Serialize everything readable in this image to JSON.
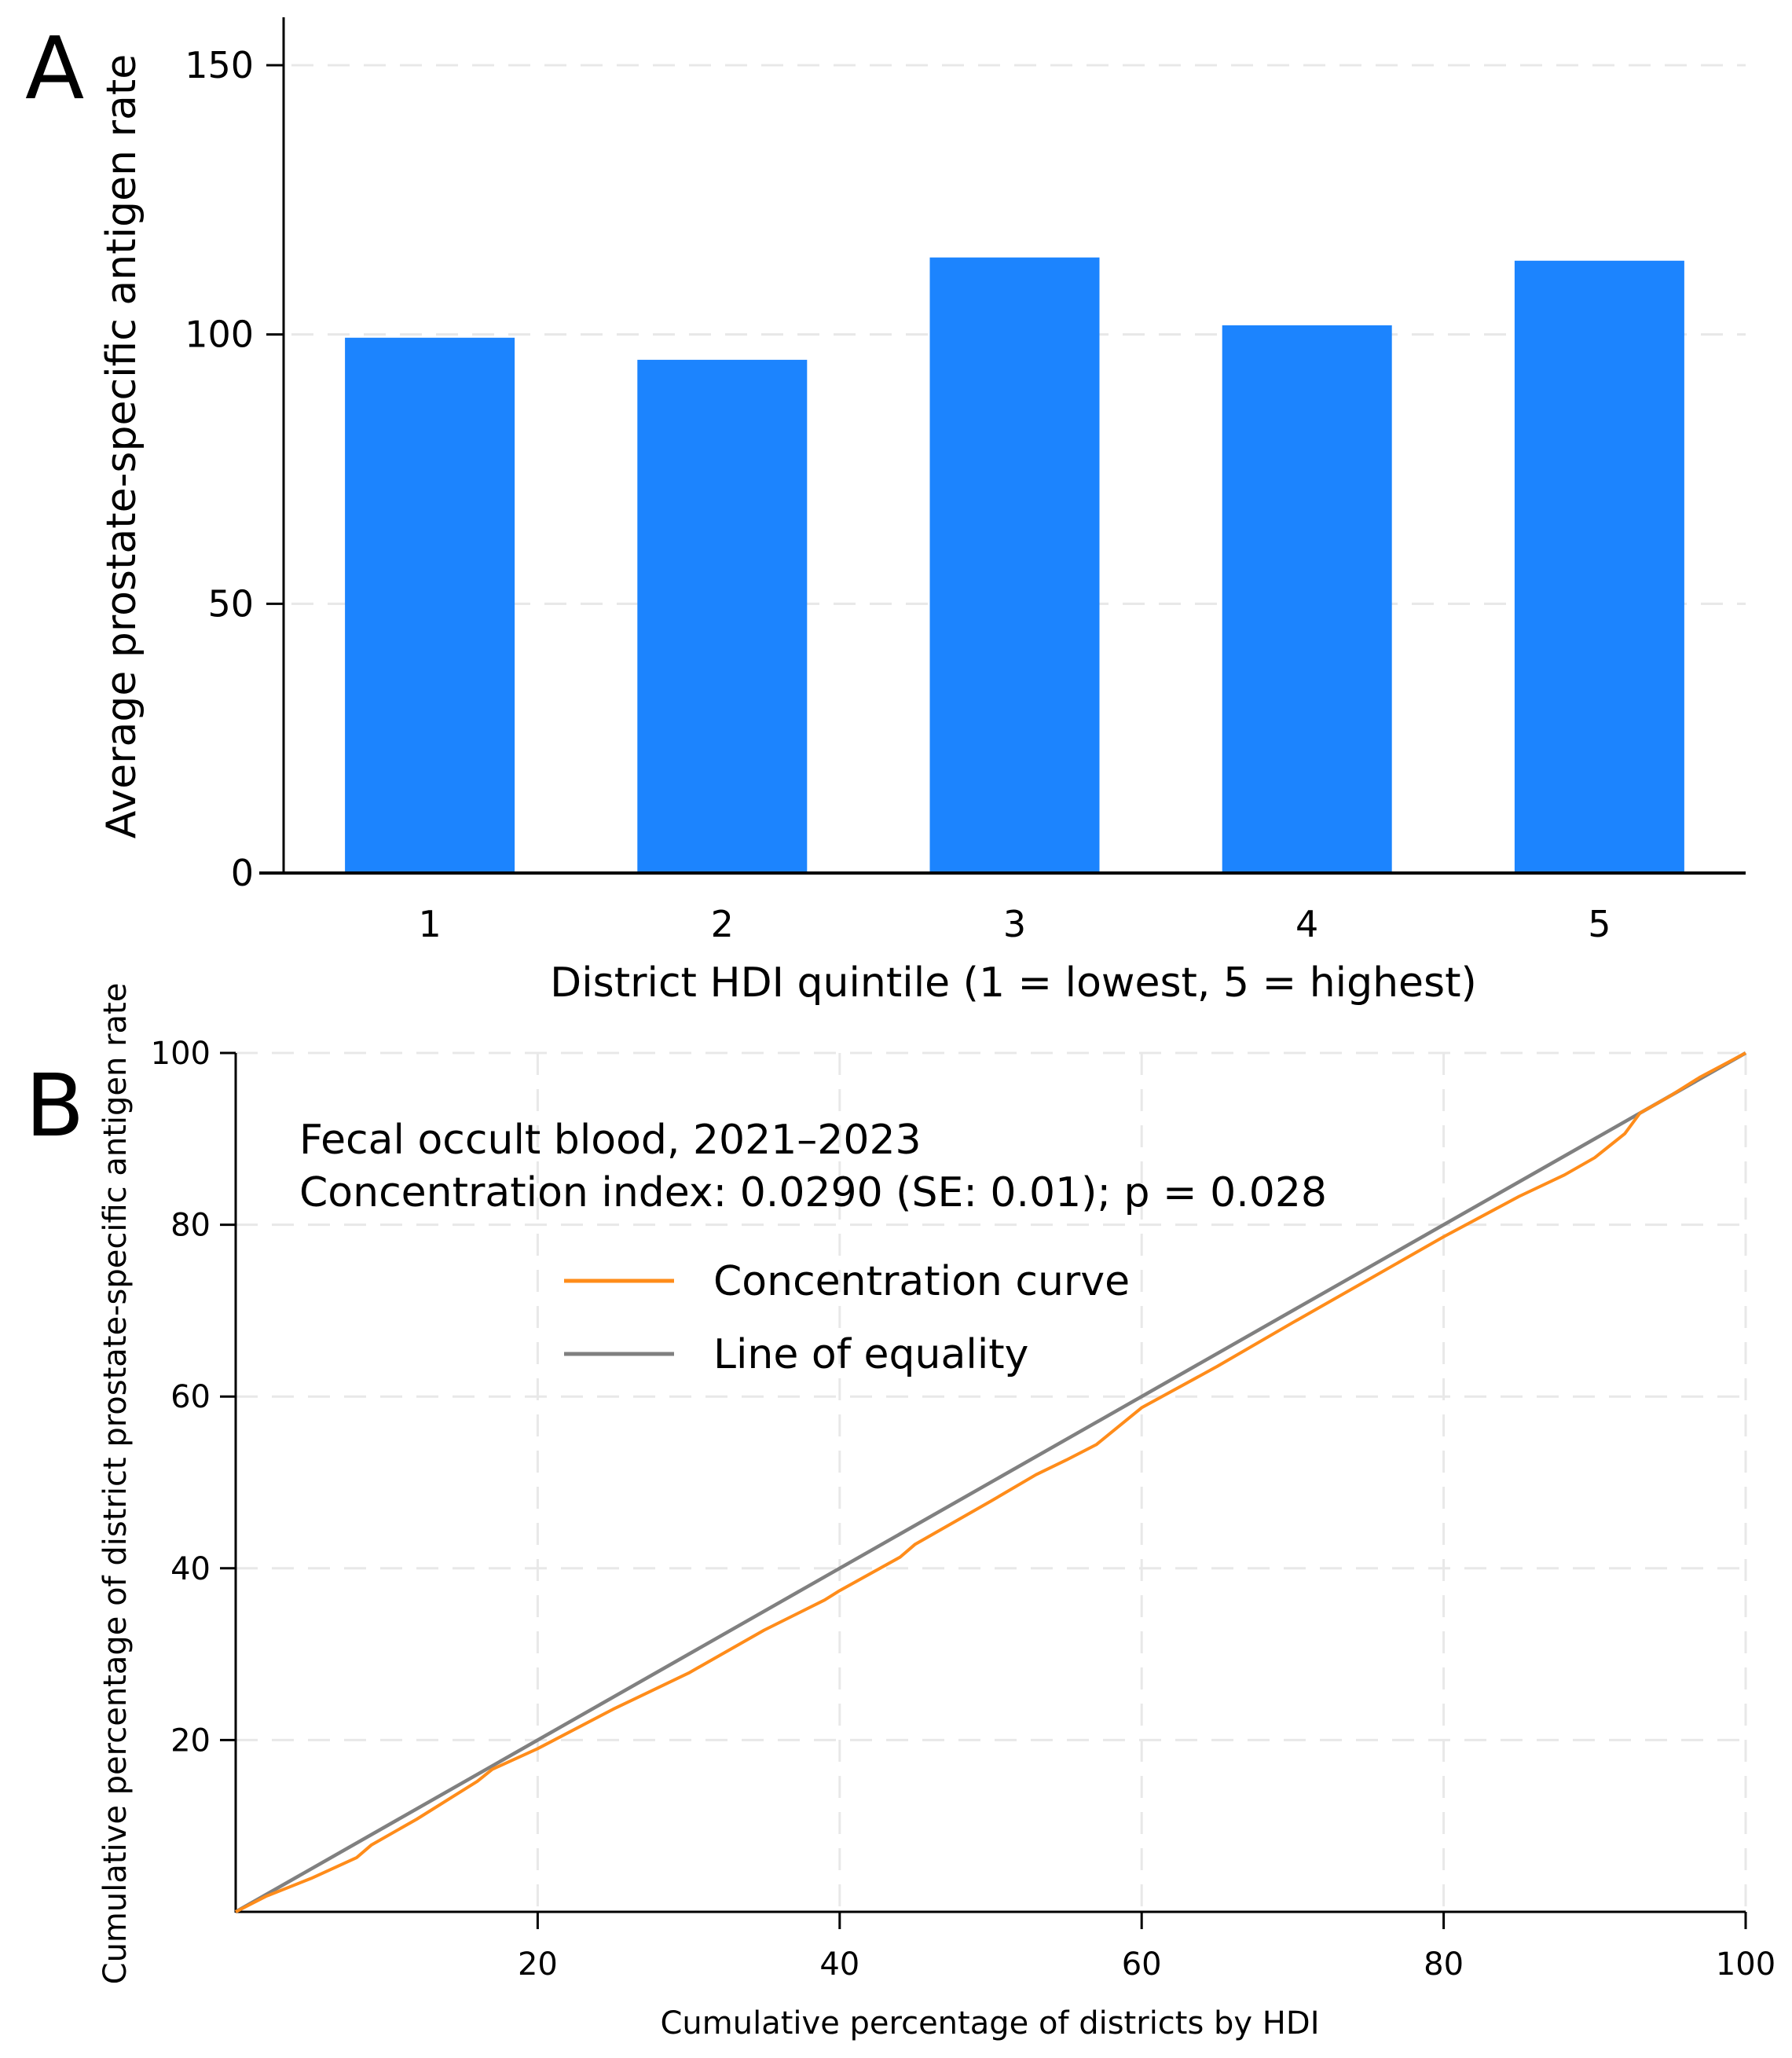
{
  "chart_data": [
    {
      "panel_label": "A",
      "type": "bar",
      "categories": [
        "1",
        "2",
        "3",
        "4",
        "5"
      ],
      "values": [
        99.4,
        95.3,
        114.3,
        101.7,
        113.7
      ],
      "title": "",
      "xlabel": "District HDI quintile (1 = lowest, 5 = highest)",
      "ylabel": "Average prostate-specific antigen rate",
      "ylim": [
        0,
        160
      ],
      "yticks": [
        0,
        50,
        100,
        150
      ],
      "grid": true,
      "color": "#1c84fe"
    },
    {
      "panel_label": "B",
      "type": "line",
      "annotation": [
        "Fecal occult blood, 2021–2023",
        "Concentration index: 0.0290 (SE: 0.01); p = 0.028"
      ],
      "xlabel": "Cumulative percentage of districts by HDI",
      "ylabel": "Cumulative percentage of district prostate-specific antigen rate",
      "xlim": [
        0,
        100
      ],
      "ylim": [
        0,
        100
      ],
      "xticks": [
        20,
        40,
        60,
        80,
        100
      ],
      "yticks": [
        20,
        40,
        60,
        80,
        100
      ],
      "grid": true,
      "legend_position": "top-left",
      "series": [
        {
          "name": "Concentration curve",
          "color": "#ff8c1a",
          "x": [
            0,
            2,
            5,
            8,
            9,
            12,
            16,
            17,
            20,
            25,
            30,
            35,
            39,
            40,
            44,
            45,
            50,
            53,
            55,
            57,
            60,
            65,
            70,
            75,
            80,
            85,
            88,
            90,
            91,
            92,
            93,
            95,
            97,
            100
          ],
          "y": [
            0,
            1.8,
            3.9,
            6.3,
            7.8,
            10.8,
            15.2,
            16.6,
            19.0,
            23.6,
            27.8,
            32.8,
            36.3,
            37.4,
            41.3,
            42.8,
            47.8,
            50.9,
            52.6,
            54.4,
            58.7,
            63.5,
            68.6,
            73.6,
            78.6,
            83.3,
            85.8,
            87.8,
            89.2,
            90.6,
            93.0,
            95.0,
            97.2,
            100
          ]
        },
        {
          "name": "Line of equality",
          "color": "#808080",
          "x": [
            0,
            100
          ],
          "y": [
            0,
            100
          ]
        }
      ]
    }
  ]
}
